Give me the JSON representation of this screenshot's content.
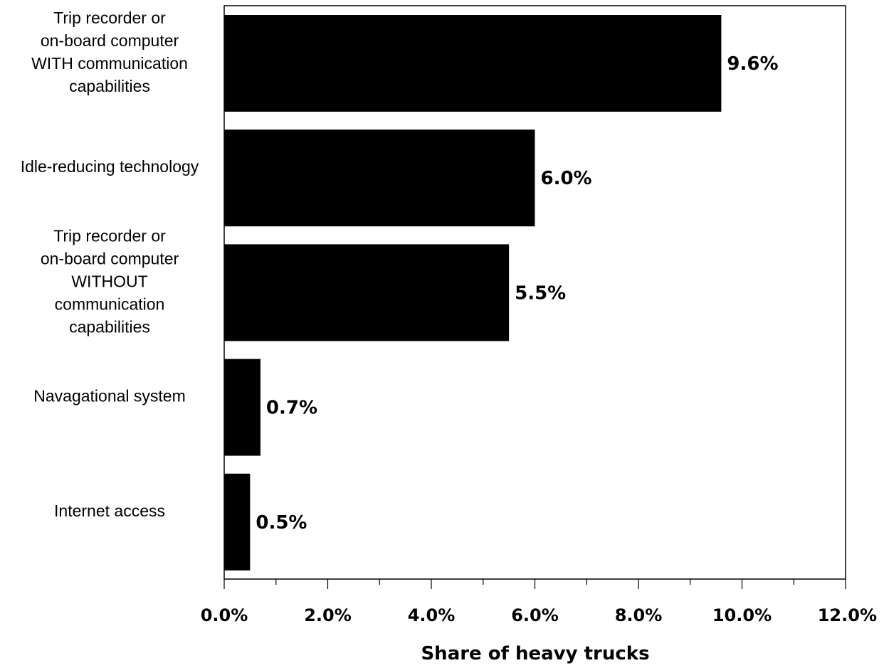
{
  "chart_data": {
    "type": "bar",
    "orientation": "horizontal",
    "categories": [
      [
        "Trip recorder or",
        "on-board computer",
        "WITH communication",
        "capabilities"
      ],
      [
        "Idle-reducing technology"
      ],
      [
        "Trip recorder or",
        "on-board computer",
        "WITHOUT",
        "communication",
        "capabilities"
      ],
      [
        "Navagational system"
      ],
      [
        "Internet access"
      ]
    ],
    "values": [
      9.6,
      6.0,
      5.5,
      0.7,
      0.5
    ],
    "value_labels": [
      "9.6%",
      "6.0%",
      "5.5%",
      "0.7%",
      "0.5%"
    ],
    "xlabel": "Share of heavy trucks",
    "ylabel": "",
    "xlim": [
      0,
      12
    ],
    "x_ticks": [
      0,
      2,
      4,
      6,
      8,
      10,
      12
    ],
    "x_tick_labels": [
      "0.0%",
      "2.0%",
      "4.0%",
      "6.0%",
      "8.0%",
      "10.0%",
      "12.0%"
    ],
    "grid": false,
    "legend": "none",
    "bar_color": "#000000"
  }
}
